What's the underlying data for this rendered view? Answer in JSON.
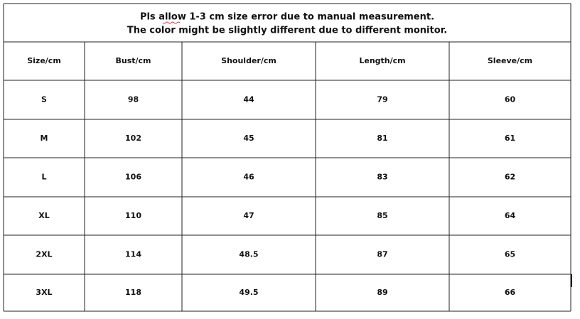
{
  "notice": {
    "lines": [
      "Pls allow 1-3 cm size error due to manual measurement.",
      "The color might be slightly different due to different monitor."
    ]
  },
  "table": {
    "header": [
      "Size/cm",
      "Bust/cm",
      "Shoulder/cm",
      "Length/cm",
      "Sleeve/cm"
    ],
    "rows": [
      [
        "S",
        98,
        44,
        79,
        60
      ],
      [
        "M",
        102,
        45,
        81,
        61
      ],
      [
        "L",
        106,
        46,
        83,
        62
      ],
      [
        "XL",
        110,
        47,
        85,
        64
      ],
      [
        "2XL",
        114,
        48.5,
        87,
        65
      ],
      [
        "3XL",
        118,
        49.5,
        89,
        66
      ]
    ]
  }
}
